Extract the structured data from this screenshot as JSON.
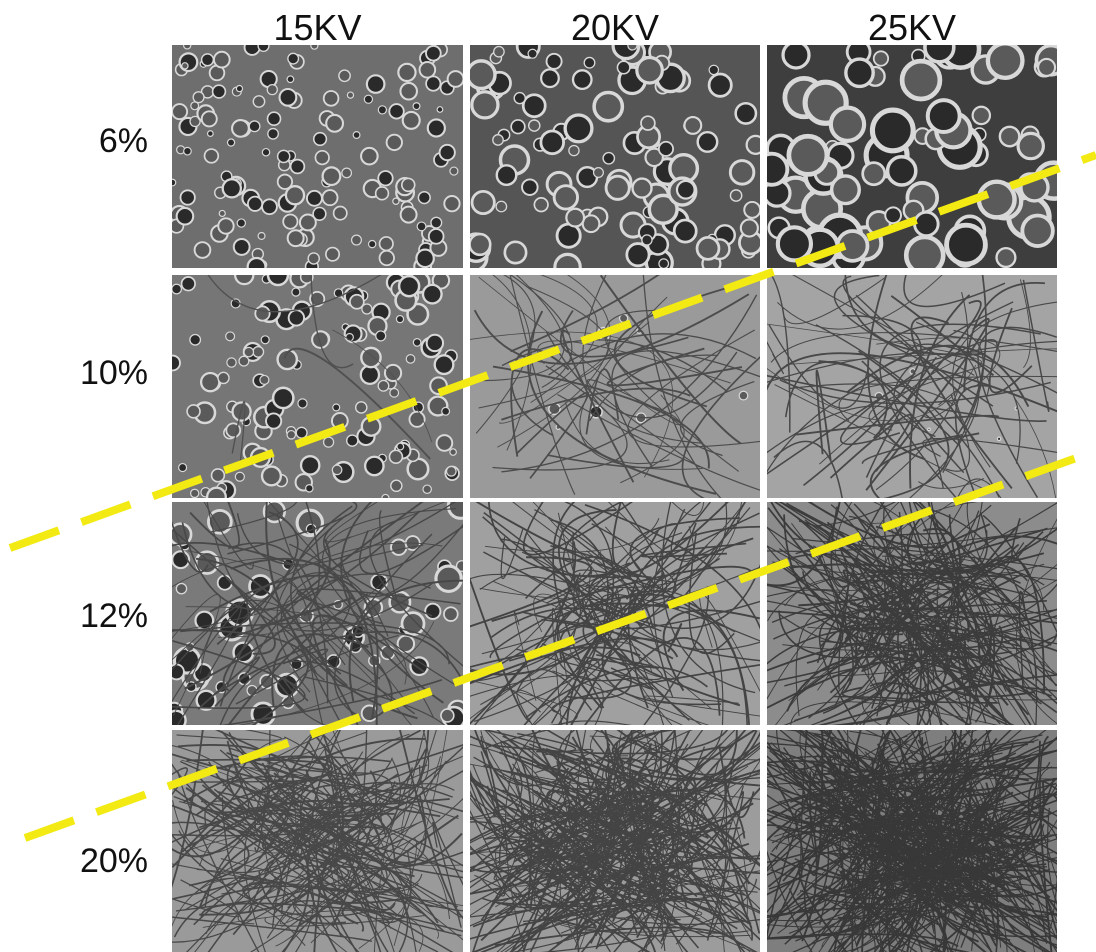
{
  "columns": [
    "15KV",
    "20KV",
    "25KV"
  ],
  "rows": [
    "6%",
    "10%",
    "12%",
    "20%"
  ]
}
